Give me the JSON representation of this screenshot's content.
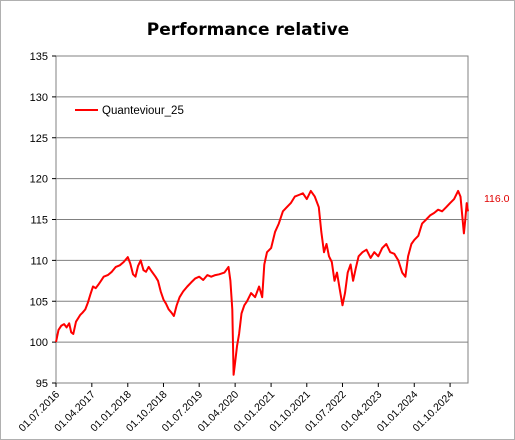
{
  "chart_data": {
    "type": "line",
    "title": "Performance relative",
    "xlabel": "",
    "ylabel": "",
    "ylim": [
      95,
      135
    ],
    "yticks": [
      95,
      100,
      105,
      110,
      115,
      120,
      125,
      130,
      135
    ],
    "xlim": [
      "2016-07-01",
      "2025-02-15"
    ],
    "x_ticks": [
      {
        "date": "2016-07-01",
        "label": "01.07.2016"
      },
      {
        "date": "2017-04-01",
        "label": "01.04.2017"
      },
      {
        "date": "2018-01-01",
        "label": "01.01.2018"
      },
      {
        "date": "2018-10-01",
        "label": "01.10.2018"
      },
      {
        "date": "2019-07-01",
        "label": "01.07.2019"
      },
      {
        "date": "2020-04-01",
        "label": "01.04.2020"
      },
      {
        "date": "2021-01-01",
        "label": "01.01.2021"
      },
      {
        "date": "2021-10-01",
        "label": "01.10.2021"
      },
      {
        "date": "2022-07-01",
        "label": "01.07.2022"
      },
      {
        "date": "2023-04-01",
        "label": "01.04.2023"
      },
      {
        "date": "2024-01-01",
        "label": "01.01.2024"
      },
      {
        "date": "2024-10-01",
        "label": "01.10.2024"
      }
    ],
    "grid": true,
    "legend_position": "top-left",
    "end_label": "116.0",
    "series": [
      {
        "name": "Quanteviour_25",
        "color": "#ff0000",
        "points": [
          [
            "2016-07-01",
            100.0
          ],
          [
            "2016-07-20",
            101.5
          ],
          [
            "2016-08-10",
            102.0
          ],
          [
            "2016-09-01",
            102.2
          ],
          [
            "2016-09-20",
            101.8
          ],
          [
            "2016-10-10",
            102.3
          ],
          [
            "2016-10-25",
            101.2
          ],
          [
            "2016-11-10",
            101.0
          ],
          [
            "2016-12-01",
            102.5
          ],
          [
            "2017-01-01",
            103.3
          ],
          [
            "2017-01-20",
            103.6
          ],
          [
            "2017-02-10",
            104.0
          ],
          [
            "2017-03-01",
            104.8
          ],
          [
            "2017-03-20",
            105.8
          ],
          [
            "2017-04-10",
            106.8
          ],
          [
            "2017-05-01",
            106.6
          ],
          [
            "2017-05-20",
            107.0
          ],
          [
            "2017-06-10",
            107.5
          ],
          [
            "2017-07-01",
            108.0
          ],
          [
            "2017-08-01",
            108.2
          ],
          [
            "2017-09-01",
            108.6
          ],
          [
            "2017-10-01",
            109.2
          ],
          [
            "2017-11-01",
            109.4
          ],
          [
            "2017-12-01",
            109.8
          ],
          [
            "2018-01-01",
            110.4
          ],
          [
            "2018-01-20",
            109.6
          ],
          [
            "2018-02-10",
            108.3
          ],
          [
            "2018-03-01",
            108.0
          ],
          [
            "2018-03-20",
            109.3
          ],
          [
            "2018-04-10",
            110.0
          ],
          [
            "2018-05-01",
            108.8
          ],
          [
            "2018-05-20",
            108.6
          ],
          [
            "2018-06-10",
            109.2
          ],
          [
            "2018-07-01",
            108.7
          ],
          [
            "2018-08-01",
            108.0
          ],
          [
            "2018-08-20",
            107.5
          ],
          [
            "2018-09-10",
            106.2
          ],
          [
            "2018-10-01",
            105.2
          ],
          [
            "2018-10-20",
            104.7
          ],
          [
            "2018-11-10",
            104.0
          ],
          [
            "2018-12-01",
            103.6
          ],
          [
            "2018-12-20",
            103.2
          ],
          [
            "2019-01-10",
            104.5
          ],
          [
            "2019-02-01",
            105.5
          ],
          [
            "2019-03-01",
            106.2
          ],
          [
            "2019-04-01",
            106.8
          ],
          [
            "2019-05-01",
            107.3
          ],
          [
            "2019-06-01",
            107.8
          ],
          [
            "2019-07-01",
            108.0
          ],
          [
            "2019-08-01",
            107.6
          ],
          [
            "2019-09-01",
            108.2
          ],
          [
            "2019-10-01",
            108.0
          ],
          [
            "2019-11-01",
            108.2
          ],
          [
            "2019-12-01",
            108.3
          ],
          [
            "2020-01-10",
            108.5
          ],
          [
            "2020-02-10",
            109.2
          ],
          [
            "2020-02-25",
            107.5
          ],
          [
            "2020-03-10",
            104.0
          ],
          [
            "2020-03-20",
            96.0
          ],
          [
            "2020-04-01",
            97.5
          ],
          [
            "2020-04-15",
            99.5
          ],
          [
            "2020-05-01",
            101.0
          ],
          [
            "2020-05-20",
            103.5
          ],
          [
            "2020-06-10",
            104.5
          ],
          [
            "2020-07-01",
            105.0
          ],
          [
            "2020-08-01",
            106.0
          ],
          [
            "2020-09-01",
            105.5
          ],
          [
            "2020-10-01",
            106.8
          ],
          [
            "2020-10-25",
            105.5
          ],
          [
            "2020-11-10",
            109.5
          ],
          [
            "2020-12-01",
            111.0
          ],
          [
            "2021-01-01",
            111.5
          ],
          [
            "2021-02-01",
            113.5
          ],
          [
            "2021-03-01",
            114.5
          ],
          [
            "2021-04-01",
            116.0
          ],
          [
            "2021-05-01",
            116.5
          ],
          [
            "2021-06-01",
            117.0
          ],
          [
            "2021-07-01",
            117.8
          ],
          [
            "2021-08-01",
            118.0
          ],
          [
            "2021-09-01",
            118.2
          ],
          [
            "2021-10-01",
            117.5
          ],
          [
            "2021-11-01",
            118.5
          ],
          [
            "2021-12-01",
            117.8
          ],
          [
            "2022-01-01",
            116.5
          ],
          [
            "2022-01-20",
            113.5
          ],
          [
            "2022-02-10",
            111.0
          ],
          [
            "2022-03-01",
            112.0
          ],
          [
            "2022-03-20",
            110.5
          ],
          [
            "2022-04-10",
            109.8
          ],
          [
            "2022-05-01",
            107.5
          ],
          [
            "2022-05-20",
            108.5
          ],
          [
            "2022-06-10",
            106.5
          ],
          [
            "2022-07-01",
            104.5
          ],
          [
            "2022-07-20",
            106.0
          ],
          [
            "2022-08-10",
            108.5
          ],
          [
            "2022-09-01",
            109.5
          ],
          [
            "2022-09-20",
            107.5
          ],
          [
            "2022-10-10",
            109.0
          ],
          [
            "2022-11-01",
            110.5
          ],
          [
            "2022-12-01",
            111.0
          ],
          [
            "2023-01-01",
            111.3
          ],
          [
            "2023-02-01",
            110.3
          ],
          [
            "2023-03-01",
            111.0
          ],
          [
            "2023-04-01",
            110.5
          ],
          [
            "2023-05-01",
            111.5
          ],
          [
            "2023-06-01",
            112.0
          ],
          [
            "2023-07-01",
            111.0
          ],
          [
            "2023-08-01",
            110.8
          ],
          [
            "2023-09-01",
            110.0
          ],
          [
            "2023-10-01",
            108.5
          ],
          [
            "2023-10-25",
            108.0
          ],
          [
            "2023-11-15",
            110.5
          ],
          [
            "2023-12-10",
            112.0
          ],
          [
            "2024-01-01",
            112.5
          ],
          [
            "2024-02-01",
            113.0
          ],
          [
            "2024-03-01",
            114.5
          ],
          [
            "2024-04-01",
            115.0
          ],
          [
            "2024-05-01",
            115.5
          ],
          [
            "2024-06-01",
            115.8
          ],
          [
            "2024-07-01",
            116.2
          ],
          [
            "2024-08-01",
            116.0
          ],
          [
            "2024-09-01",
            116.5
          ],
          [
            "2024-10-01",
            117.0
          ],
          [
            "2024-11-01",
            117.5
          ],
          [
            "2024-12-01",
            118.5
          ],
          [
            "2024-12-20",
            117.8
          ],
          [
            "2025-01-05",
            115.0
          ],
          [
            "2025-01-15",
            113.3
          ],
          [
            "2025-01-25",
            115.0
          ],
          [
            "2025-02-05",
            117.0
          ],
          [
            "2025-02-15",
            116.0
          ]
        ]
      }
    ]
  }
}
